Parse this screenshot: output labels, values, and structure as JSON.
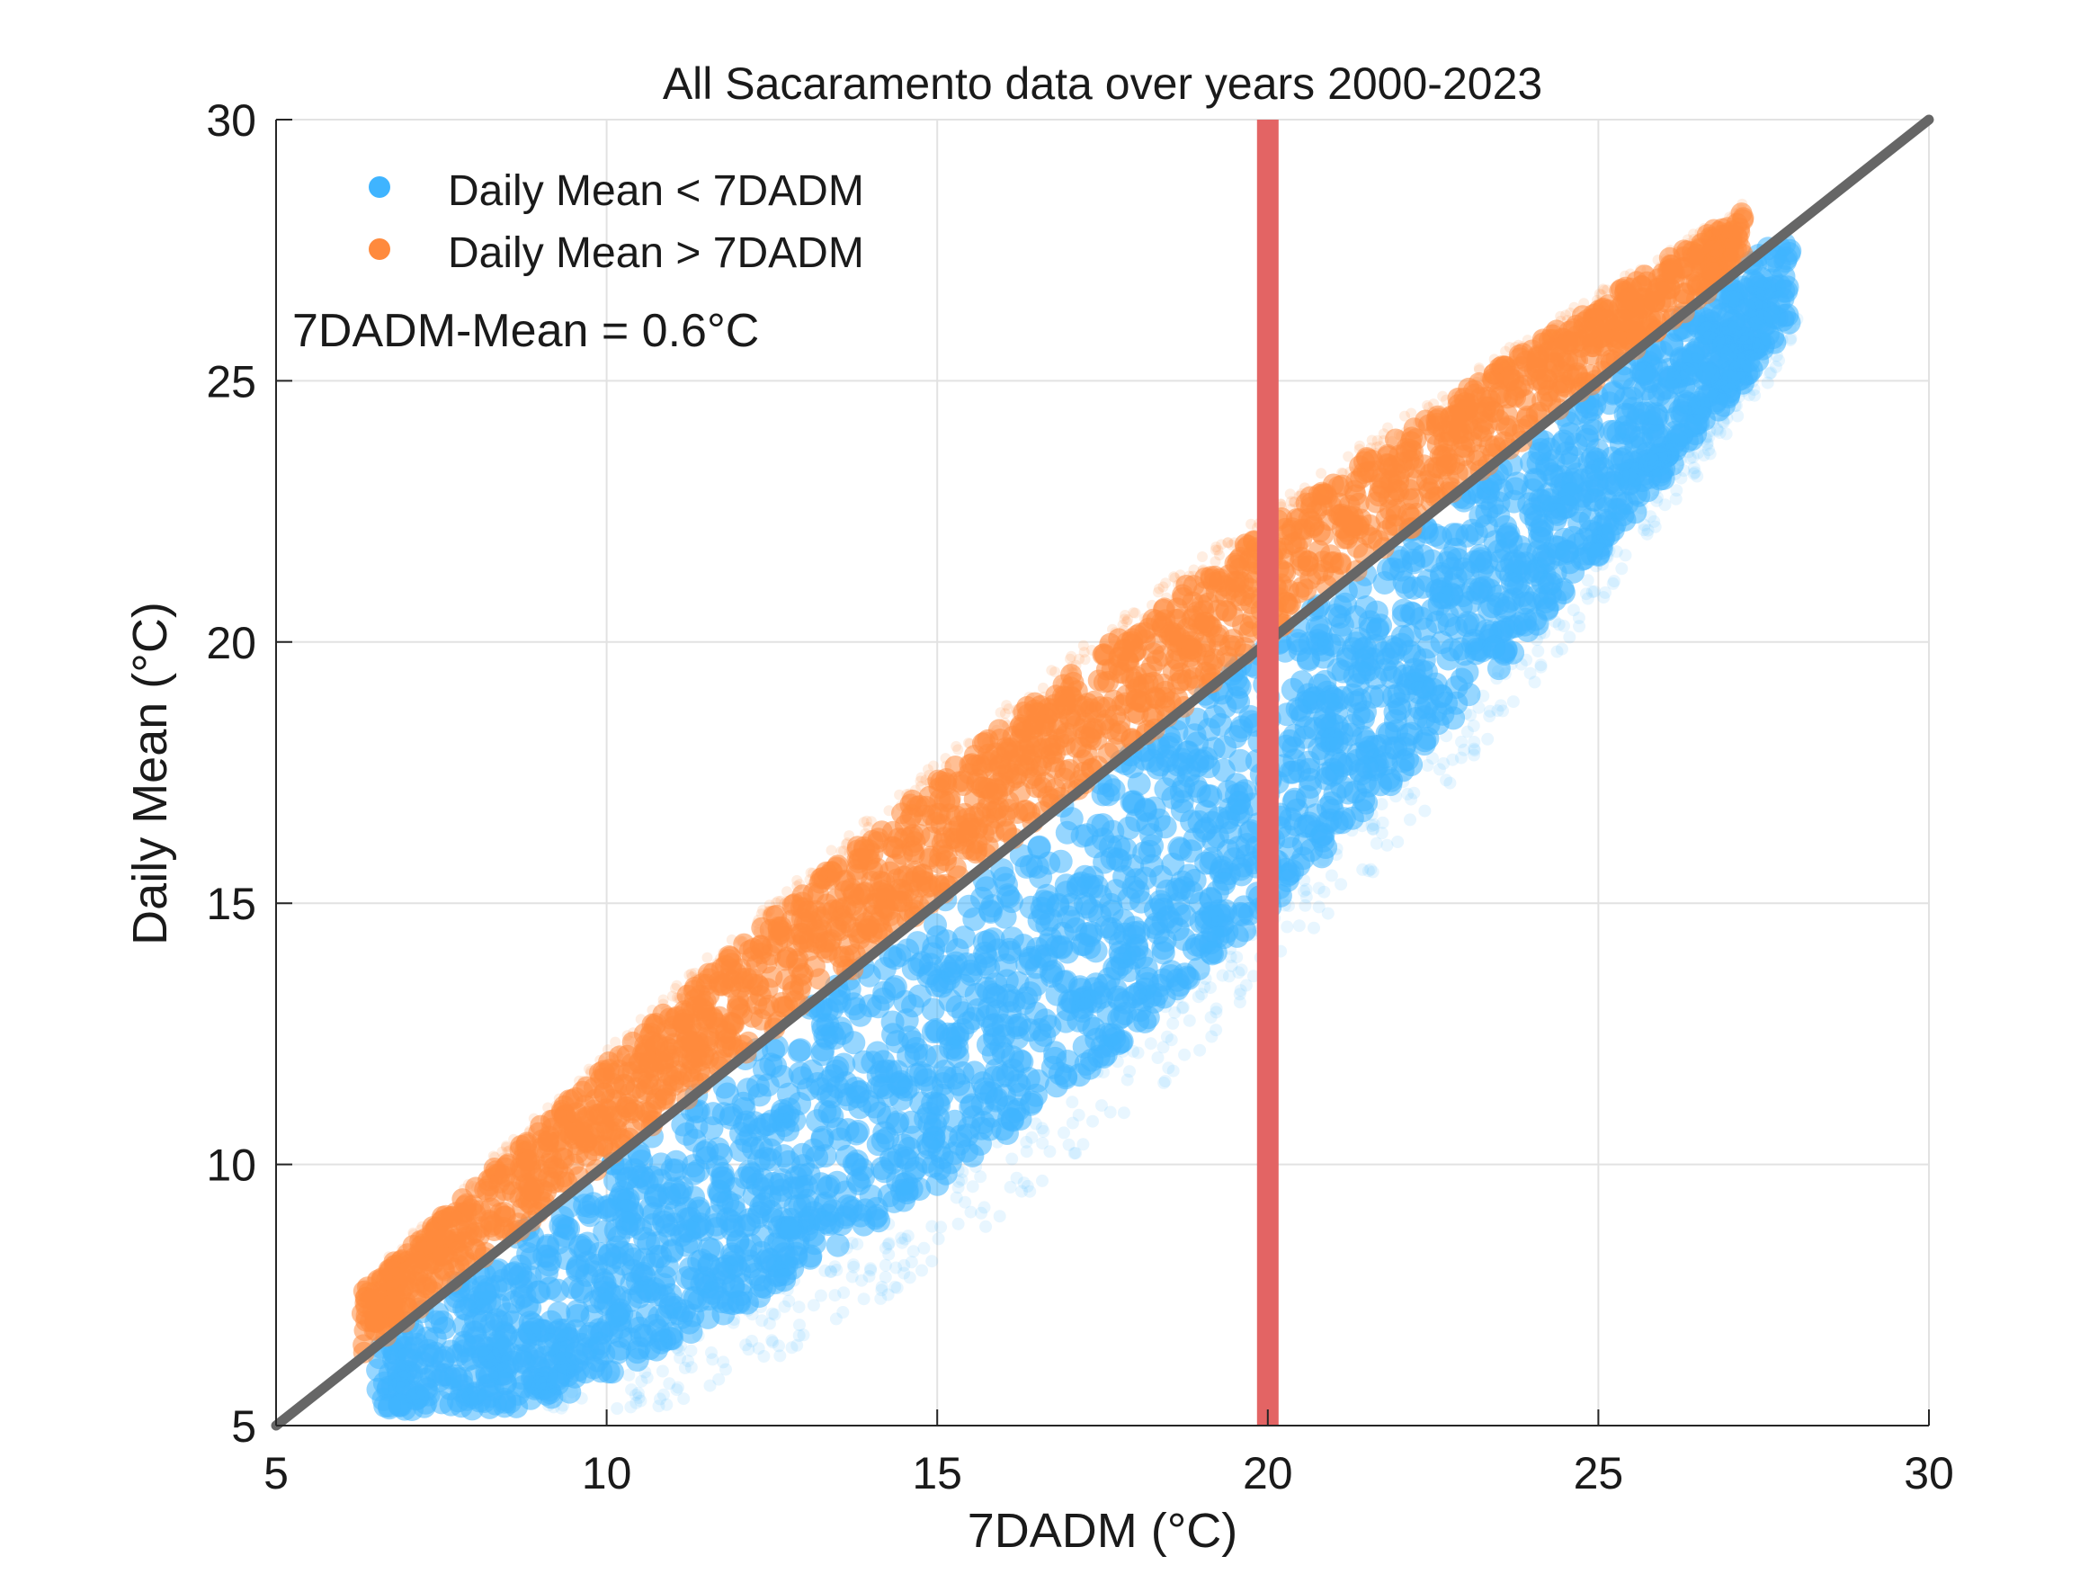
{
  "chart_data": {
    "type": "scatter",
    "title": "All Sacaramento data over years 2000-2023",
    "xlabel": "7DADM (°C)",
    "ylabel": "Daily Mean (°C)",
    "xlim": [
      5,
      30
    ],
    "ylim": [
      5,
      30
    ],
    "x_ticks": [
      "5",
      "10",
      "15",
      "20",
      "25",
      "30"
    ],
    "y_ticks": [
      "5",
      "10",
      "15",
      "20",
      "25",
      "30"
    ],
    "grid": true,
    "legend_position": "top-left",
    "series": [
      {
        "name": "Daily Mean < 7DADM",
        "color": "#3fb4ff",
        "x_range": [
          6.5,
          28.2
        ],
        "below_identity_by_up_to": 5.0
      },
      {
        "name": "Daily Mean > 7DADM",
        "color": "#ff8a3d",
        "x_range": [
          6.3,
          27.2
        ],
        "above_identity_by_up_to": 1.8
      }
    ],
    "reference_lines": [
      {
        "kind": "identity",
        "from": [
          5,
          5
        ],
        "to": [
          30,
          30
        ],
        "color": "#666666"
      },
      {
        "kind": "vertical",
        "x": 20,
        "color": "#e36464"
      }
    ],
    "annotation": "7DADM-Mean = 0.6°C"
  }
}
